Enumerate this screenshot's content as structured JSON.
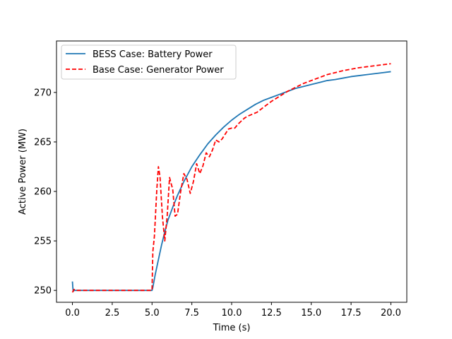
{
  "chart_data": {
    "type": "line",
    "title": "",
    "xlabel": "Time (s)",
    "ylabel": "Active Power (MW)",
    "xlim": [
      -1.0,
      21.0
    ],
    "ylim": [
      248.8,
      275.2
    ],
    "grid": false,
    "legend_position": "upper-left",
    "xticks": [
      {
        "value": 0.0,
        "label": "0.0"
      },
      {
        "value": 2.5,
        "label": "2.5"
      },
      {
        "value": 5.0,
        "label": "5.0"
      },
      {
        "value": 7.5,
        "label": "7.5"
      },
      {
        "value": 10.0,
        "label": "10.0"
      },
      {
        "value": 12.5,
        "label": "12.5"
      },
      {
        "value": 15.0,
        "label": "15.0"
      },
      {
        "value": 17.5,
        "label": "17.5"
      },
      {
        "value": 20.0,
        "label": "20.0"
      }
    ],
    "yticks": [
      {
        "value": 250,
        "label": "250"
      },
      {
        "value": 255,
        "label": "255"
      },
      {
        "value": 260,
        "label": "260"
      },
      {
        "value": 265,
        "label": "265"
      },
      {
        "value": 270,
        "label": "270"
      }
    ],
    "series": [
      {
        "name": "BESS Case: Battery Power",
        "color": "#1f77b4",
        "style": "solid",
        "x": [
          0.0,
          0.02,
          0.05,
          0.1,
          0.2,
          1.0,
          2.0,
          3.0,
          4.0,
          5.0,
          5.05,
          5.2,
          5.4,
          5.6,
          5.8,
          6.0,
          6.3,
          6.6,
          7.0,
          7.5,
          8.0,
          8.5,
          9.0,
          9.5,
          10.0,
          10.5,
          11.0,
          11.5,
          12.0,
          12.5,
          13.0,
          13.5,
          14.0,
          14.5,
          15.0,
          15.5,
          16.0,
          16.5,
          17.0,
          17.5,
          18.0,
          18.5,
          19.0,
          19.5,
          20.0
        ],
        "y": [
          250.9,
          250.4,
          249.9,
          250.0,
          250.0,
          250.0,
          250.0,
          250.0,
          250.0,
          250.0,
          250.3,
          251.6,
          253.1,
          254.6,
          255.9,
          257.1,
          258.4,
          259.6,
          261.0,
          262.5,
          263.7,
          264.8,
          265.7,
          266.5,
          267.2,
          267.8,
          268.3,
          268.8,
          269.2,
          269.5,
          269.8,
          270.1,
          270.4,
          270.6,
          270.8,
          271.0,
          271.2,
          271.3,
          271.45,
          271.6,
          271.7,
          271.8,
          271.9,
          272.0,
          272.1
        ]
      },
      {
        "name": "Base Case: Generator Power",
        "color": "#ff0000",
        "style": "dashed",
        "x": [
          0.0,
          0.1,
          0.2,
          1.0,
          2.0,
          3.0,
          4.0,
          5.0,
          5.05,
          5.15,
          5.3,
          5.4,
          5.5,
          5.65,
          5.8,
          5.95,
          6.1,
          6.3,
          6.45,
          6.6,
          6.8,
          7.0,
          7.2,
          7.4,
          7.6,
          7.8,
          8.0,
          8.2,
          8.4,
          8.6,
          8.8,
          9.0,
          9.2,
          9.4,
          9.6,
          9.8,
          10.0,
          10.2,
          10.4,
          10.6,
          10.8,
          11.0,
          11.3,
          11.6,
          12.0,
          12.5,
          13.0,
          13.5,
          14.0,
          14.5,
          15.0,
          15.5,
          16.0,
          16.5,
          17.0,
          17.5,
          18.0,
          18.5,
          19.0,
          19.5,
          20.0
        ],
        "y": [
          249.8,
          250.1,
          250.0,
          250.0,
          250.0,
          250.0,
          250.0,
          250.0,
          253.9,
          255.5,
          260.2,
          262.5,
          261.5,
          257.5,
          255.0,
          257.5,
          261.4,
          260.2,
          257.5,
          257.7,
          260.0,
          261.8,
          261.2,
          259.8,
          261.0,
          262.8,
          261.8,
          262.6,
          263.9,
          263.5,
          264.2,
          265.2,
          265.0,
          265.3,
          265.8,
          266.3,
          266.4,
          266.4,
          266.8,
          267.1,
          267.4,
          267.6,
          267.8,
          268.0,
          268.5,
          269.1,
          269.6,
          270.1,
          270.5,
          270.9,
          271.2,
          271.5,
          271.8,
          272.0,
          272.2,
          272.35,
          272.5,
          272.6,
          272.7,
          272.8,
          272.9
        ]
      }
    ]
  }
}
